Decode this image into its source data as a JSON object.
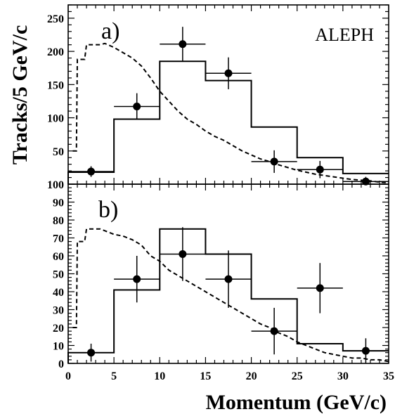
{
  "experiment_label": "ALEPH",
  "chart_data": {
    "type": "histogram",
    "xlabel": "Momentum (GeV/c)",
    "ylabel": "Tracks/5 GeV/c",
    "xlim": [
      0,
      35
    ],
    "x_ticks": [
      0,
      5,
      10,
      15,
      20,
      25,
      30,
      35
    ],
    "panels": [
      {
        "label": "a)",
        "ylim": [
          0,
          270
        ],
        "y_ticks": [
          50,
          100,
          150,
          200,
          250
        ],
        "bin_edges": [
          0,
          5,
          10,
          15,
          20,
          25,
          30,
          35
        ],
        "histogram_values": [
          18,
          98,
          185,
          156,
          86,
          40,
          16
        ],
        "points": [
          {
            "x": 2.5,
            "y": 19,
            "yerr": 8
          },
          {
            "x": 7.5,
            "y": 117,
            "yerr": 20
          },
          {
            "x": 12.5,
            "y": 211,
            "yerr": 26
          },
          {
            "x": 17.5,
            "y": 167,
            "yerr": 24
          },
          {
            "x": 22.5,
            "y": 34,
            "yerr": 17
          },
          {
            "x": 27.5,
            "y": 22,
            "yerr": 13
          },
          {
            "x": 32.5,
            "y": 4,
            "yerr": 7
          }
        ],
        "dashed_curve": [
          [
            0.5,
            50
          ],
          [
            0.9,
            50
          ],
          [
            1.0,
            188
          ],
          [
            1.8,
            188
          ],
          [
            2.0,
            210
          ],
          [
            3.5,
            210
          ],
          [
            4.0,
            212
          ],
          [
            5.0,
            206
          ],
          [
            6.0,
            198
          ],
          [
            7.0,
            190
          ],
          [
            8.0,
            178
          ],
          [
            9.0,
            160
          ],
          [
            10.0,
            140
          ],
          [
            11.0,
            125
          ],
          [
            12.0,
            110
          ],
          [
            13.0,
            98
          ],
          [
            14.0,
            90
          ],
          [
            15.0,
            80
          ],
          [
            16.0,
            72
          ],
          [
            17.0,
            66
          ],
          [
            18.0,
            58
          ],
          [
            19.0,
            50
          ],
          [
            20.0,
            44
          ],
          [
            21.0,
            38
          ],
          [
            22.0,
            34
          ],
          [
            23.0,
            29
          ],
          [
            24.0,
            25
          ],
          [
            25.0,
            21
          ],
          [
            26.0,
            18
          ],
          [
            27.0,
            15
          ],
          [
            28.0,
            13
          ],
          [
            29.0,
            11
          ],
          [
            30.0,
            9
          ],
          [
            31.0,
            7
          ],
          [
            32.0,
            6
          ],
          [
            33.0,
            5
          ],
          [
            34.0,
            3
          ],
          [
            35.0,
            2
          ]
        ]
      },
      {
        "label": "b)",
        "ylim": [
          0,
          100
        ],
        "y_ticks": [
          0,
          10,
          20,
          30,
          40,
          50,
          60,
          70,
          80,
          90,
          100
        ],
        "bin_edges": [
          0,
          5,
          10,
          15,
          20,
          25,
          30,
          35
        ],
        "histogram_values": [
          6,
          41,
          75,
          61,
          36,
          11,
          7
        ],
        "points": [
          {
            "x": 2.5,
            "y": 6,
            "yerr": 5
          },
          {
            "x": 7.5,
            "y": 47,
            "yerr": 13
          },
          {
            "x": 12.5,
            "y": 61,
            "yerr": 15
          },
          {
            "x": 17.5,
            "y": 47,
            "yerr": 16
          },
          {
            "x": 22.5,
            "y": 18,
            "yerr": 13
          },
          {
            "x": 27.5,
            "y": 42,
            "yerr": 14
          },
          {
            "x": 32.5,
            "y": 7,
            "yerr": 7
          }
        ],
        "dashed_curve": [
          [
            0.5,
            20
          ],
          [
            0.9,
            20
          ],
          [
            1.0,
            68
          ],
          [
            1.8,
            68
          ],
          [
            2.0,
            75
          ],
          [
            3.5,
            75
          ],
          [
            5.0,
            72
          ],
          [
            6.0,
            71
          ],
          [
            7.0,
            69
          ],
          [
            8.0,
            66
          ],
          [
            9.0,
            60
          ],
          [
            10.0,
            57
          ],
          [
            11.0,
            52
          ],
          [
            12.0,
            49
          ],
          [
            13.0,
            46
          ],
          [
            14.0,
            43
          ],
          [
            15.0,
            40
          ],
          [
            16.0,
            37
          ],
          [
            17.0,
            34
          ],
          [
            18.0,
            31
          ],
          [
            19.0,
            28
          ],
          [
            20.0,
            25
          ],
          [
            21.0,
            22
          ],
          [
            22.0,
            20
          ],
          [
            23.0,
            17
          ],
          [
            24.0,
            15
          ],
          [
            25.0,
            12
          ],
          [
            26.0,
            10
          ],
          [
            27.0,
            8
          ],
          [
            28.0,
            6
          ],
          [
            29.0,
            5
          ],
          [
            30.0,
            4
          ],
          [
            31.0,
            3
          ],
          [
            32.0,
            3
          ],
          [
            33.0,
            2
          ],
          [
            34.0,
            2
          ],
          [
            35.0,
            1
          ]
        ]
      }
    ]
  }
}
